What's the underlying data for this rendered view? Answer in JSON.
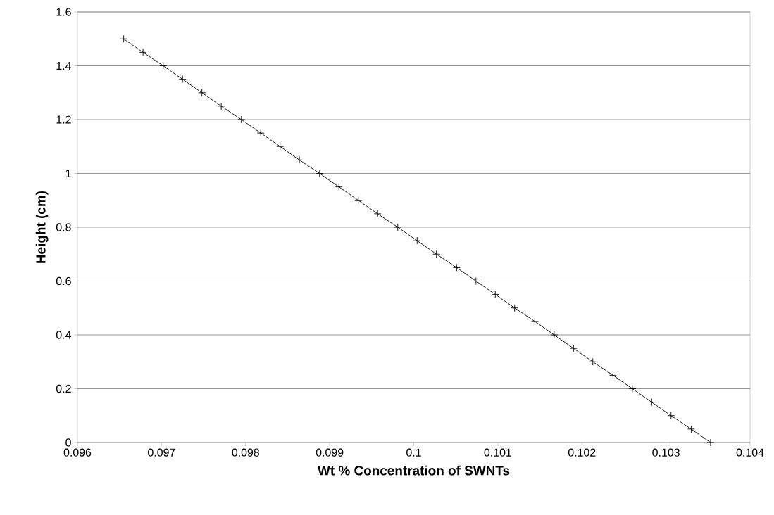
{
  "chart_data": {
    "type": "line",
    "xlabel": "Wt % Concentration of SWNTs",
    "ylabel": "Height (cm)",
    "x": [
      0.09655,
      0.09678,
      0.09702,
      0.09725,
      0.09748,
      0.09771,
      0.09795,
      0.09818,
      0.09841,
      0.09864,
      0.09888,
      0.09911,
      0.09934,
      0.09957,
      0.09981,
      0.10004,
      0.10027,
      0.10051,
      0.10074,
      0.10097,
      0.1012,
      0.10144,
      0.10167,
      0.1019,
      0.10213,
      0.10237,
      0.1026,
      0.10283,
      0.10306,
      0.1033,
      0.10353
    ],
    "series": [
      {
        "color": "#000000",
        "values": [
          1.5,
          1.45,
          1.4,
          1.35,
          1.3,
          1.25,
          1.2,
          1.15,
          1.1,
          1.05,
          1.0,
          0.95,
          0.9,
          0.85,
          0.8,
          0.75,
          0.7,
          0.65,
          0.6,
          0.55,
          0.5,
          0.45,
          0.4,
          0.35,
          0.3,
          0.25,
          0.2,
          0.15,
          0.1,
          0.05,
          0.0
        ]
      }
    ],
    "xlim": [
      0.096,
      0.104
    ],
    "xticks": [
      0.096,
      0.097,
      0.098,
      0.099,
      0.1,
      0.101,
      0.102,
      0.103,
      0.104
    ],
    "ylim": [
      0,
      1.6
    ],
    "yticks": [
      0,
      0.2,
      0.4,
      0.6,
      0.8,
      1,
      1.2,
      1.4,
      1.6
    ],
    "grid": "y",
    "marker": "cross",
    "line_style": "solid"
  }
}
